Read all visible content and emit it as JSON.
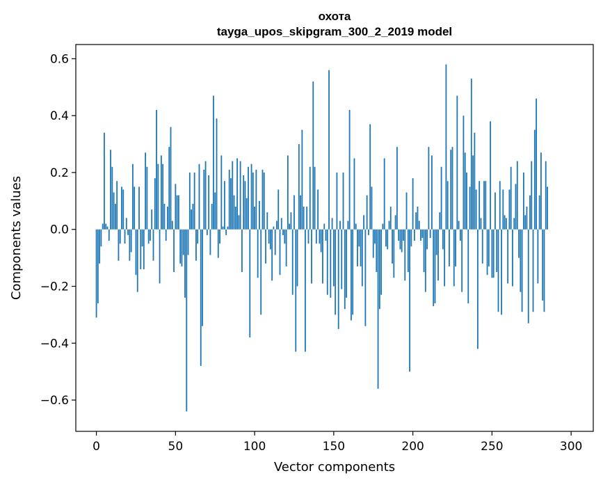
{
  "chart_data": {
    "type": "bar",
    "title": [
      "охота",
      "tayga_upos_skipgram_300_2_2019 model"
    ],
    "xlabel": "Vector components",
    "ylabel": "Components values",
    "xlim": [
      -13,
      314
    ],
    "ylim": [
      -0.71,
      0.65
    ],
    "x_ticks": [
      0,
      50,
      100,
      150,
      200,
      250,
      300
    ],
    "y_ticks": [
      -0.6,
      -0.4,
      -0.2,
      0.0,
      0.2,
      0.4,
      0.6
    ],
    "y_tick_labels": [
      "−0.6",
      "−0.4",
      "−0.2",
      "0.0",
      "0.2",
      "0.4",
      "0.6"
    ],
    "grid": false,
    "bar_color": "#1f77b4",
    "values": [
      -0.31,
      -0.26,
      -0.12,
      -0.06,
      0.02,
      0.34,
      0.02,
      0.01,
      -0.04,
      0.28,
      0.22,
      0.13,
      0.09,
      0.17,
      -0.11,
      -0.05,
      0.15,
      0.14,
      -0.05,
      0.04,
      -0.02,
      -0.11,
      -0.08,
      0.23,
      0.15,
      -0.16,
      -0.22,
      0.15,
      -0.14,
      -0.06,
      -0.14,
      0.27,
      0.22,
      -0.05,
      -0.04,
      0.07,
      -0.11,
      0.18,
      0.42,
      0.23,
      -0.19,
      0.26,
      0.23,
      0.09,
      -0.04,
      0.08,
      0.29,
      0.36,
      0.03,
      -0.15,
      0.16,
      0.12,
      0.12,
      -0.12,
      -0.13,
      -0.09,
      -0.24,
      -0.64,
      -0.09,
      0.2,
      0.07,
      0.09,
      0.2,
      -0.11,
      -0.05,
      0.23,
      -0.48,
      -0.34,
      0.21,
      0.24,
      -0.02,
      0.19,
      -0.09,
      0.09,
      0.47,
      0.13,
      0.39,
      -0.1,
      -0.05,
      0.26,
      0.01,
      0.17,
      -0.02,
      0.01,
      0.21,
      0.18,
      0.24,
      0.12,
      0.08,
      0.25,
      0.05,
      0.24,
      -0.15,
      0.19,
      0.17,
      0.11,
      0.22,
      -0.38,
      0.23,
      0.2,
      0.08,
      0.21,
      -0.17,
      0.1,
      -0.3,
      0.21,
      0.2,
      -0.12,
      0.06,
      -0.05,
      -0.07,
      -0.18,
      0.01,
      -0.09,
      0.03,
      0.14,
      -0.16,
      0.04,
      -0.02,
      -0.05,
      -0.13,
      0.26,
      0.02,
      0.06,
      -0.23,
      0.12,
      -0.43,
      -0.2,
      0.3,
      0.12,
      0.35,
      0.08,
      -0.43,
      0.08,
      -0.05,
      0.22,
      -0.19,
      0.52,
      0.22,
      -0.05,
      0.14,
      -0.05,
      -0.08,
      -0.19,
      0.02,
      -0.04,
      -0.23,
      0.56,
      -0.24,
      0.04,
      -0.2,
      -0.3,
      0.2,
      -0.35,
      0.03,
      -0.21,
      0.2,
      -0.28,
      -0.24,
      0.03,
      0.42,
      -0.32,
      -0.3,
      0.25,
      0.02,
      -0.13,
      -0.06,
      -0.13,
      -0.2,
      0.05,
      -0.34,
      0.12,
      -0.02,
      0.37,
      0.15,
      -0.1,
      -0.05,
      -0.15,
      -0.56,
      -0.28,
      -0.23,
      0.02,
      0.25,
      -0.06,
      -0.07,
      0.03,
      0.08,
      -0.12,
      -0.17,
      0.05,
      0.29,
      -0.04,
      -0.07,
      -0.08,
      -0.04,
      -0.18,
      0.13,
      -0.15,
      -0.5,
      -0.06,
      0.18,
      -0.04,
      0.06,
      0.08,
      0.03,
      -0.04,
      -0.03,
      -0.15,
      -0.22,
      -0.07,
      0.29,
      -0.03,
      0.26,
      -0.27,
      -0.26,
      -0.09,
      -0.18,
      0.06,
      0.22,
      -0.07,
      -0.2,
      0.58,
      0.17,
      -0.13,
      0.28,
      0.29,
      -0.2,
      -0.13,
      0.47,
      0.03,
      -0.04,
      -0.22,
      0.4,
      0.27,
      0.2,
      -0.26,
      0.15,
      0.53,
      0.26,
      0.34,
      0.14,
      -0.42,
      0.17,
      0.04,
      -0.12,
      0.17,
      0.17,
      -0.16,
      -0.13,
      0.38,
      -0.17,
      -0.17,
      0.13,
      -0.15,
      -0.29,
      0.17,
      -0.3,
      0.14,
      0.05,
      0.04,
      -0.19,
      0.14,
      0.22,
      -0.2,
      0.04,
      0.16,
      0.24,
      -0.1,
      -0.22,
      -0.29,
      0.2,
      0.05,
      0.08,
      -0.33,
      0.12,
      0.24,
      -0.29,
      0.35,
      0.46,
      -0.19,
      0.12,
      0.27,
      -0.25,
      -0.29,
      0.24,
      0.15
    ]
  }
}
